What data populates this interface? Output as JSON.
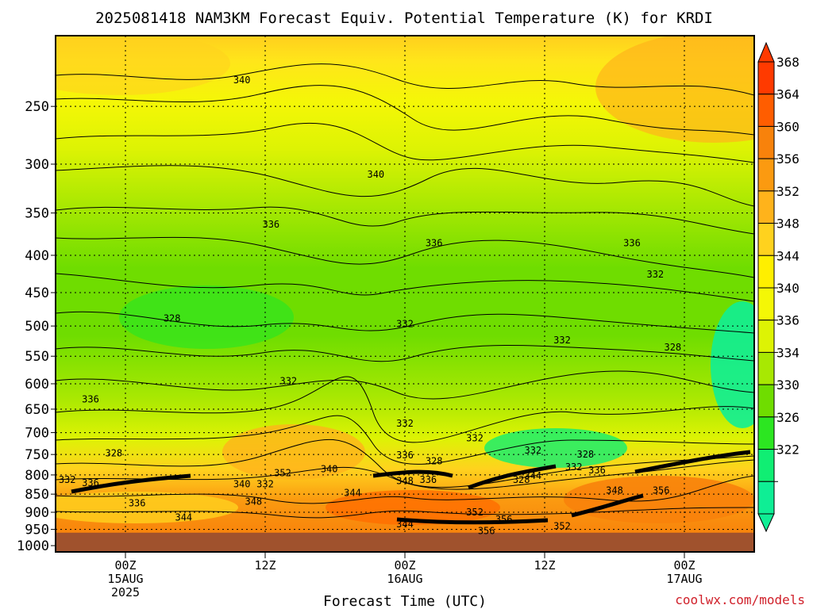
{
  "chart_data": {
    "type": "heatmap",
    "title": "2025081418 NAM3KM Forecast Equiv. Potential Temperature (K) for KRDI",
    "xlabel": "Forecast Time (UTC)",
    "ylabel": "",
    "credit": "coolwx.com/models",
    "x_ticks": [
      {
        "hour": 6,
        "line1": "00Z",
        "line2": "15AUG",
        "line3": "2025"
      },
      {
        "hour": 18,
        "line1": "12Z",
        "line2": "",
        "line3": ""
      },
      {
        "hour": 30,
        "line1": "00Z",
        "line2": "16AUG",
        "line3": ""
      },
      {
        "hour": 42,
        "line1": "12Z",
        "line2": "",
        "line3": ""
      },
      {
        "hour": 54,
        "line1": "00Z",
        "line2": "17AUG",
        "line3": ""
      }
    ],
    "x_range_hours": [
      0,
      60
    ],
    "y_ticks": [
      "250",
      "300",
      "350",
      "400",
      "450",
      "500",
      "550",
      "600",
      "650",
      "700",
      "750",
      "800",
      "850",
      "900",
      "950",
      "1000"
    ],
    "y_range_hPa": [
      200,
      1020
    ],
    "surface_pressure_hPa": 960,
    "colorbar": {
      "labels": [
        "368",
        "364",
        "360",
        "356",
        "352",
        "348",
        "344",
        "340",
        "336",
        "334",
        "330",
        "326",
        "322"
      ],
      "colors": [
        "#ff3a00",
        "#ff5d00",
        "#f8820b",
        "#fb9a10",
        "#ffb31b",
        "#ffd21e",
        "#ffef00",
        "#f4f706",
        "#ddf304",
        "#a8e802",
        "#6fdd00",
        "#2ce621",
        "#10ee73",
        "#0fee95"
      ]
    },
    "contour_labels": [
      {
        "text": "340",
        "hour": 16,
        "p": 230
      },
      {
        "text": "340",
        "hour": 27.5,
        "p": 310
      },
      {
        "text": "336",
        "hour": 18.5,
        "p": 363
      },
      {
        "text": "336",
        "hour": 32.5,
        "p": 385
      },
      {
        "text": "336",
        "hour": 49.5,
        "p": 385
      },
      {
        "text": "332",
        "hour": 51.5,
        "p": 425
      },
      {
        "text": "328",
        "hour": 10,
        "p": 488
      },
      {
        "text": "332",
        "hour": 30,
        "p": 497
      },
      {
        "text": "332",
        "hour": 43.5,
        "p": 523
      },
      {
        "text": "328",
        "hour": 53,
        "p": 535
      },
      {
        "text": "332",
        "hour": 20,
        "p": 595
      },
      {
        "text": "336",
        "hour": 3,
        "p": 630
      },
      {
        "text": "332",
        "hour": 30,
        "p": 680
      },
      {
        "text": "332",
        "hour": 36,
        "p": 712
      },
      {
        "text": "336",
        "hour": 30,
        "p": 752
      },
      {
        "text": "328",
        "hour": 32.5,
        "p": 766
      },
      {
        "text": "332",
        "hour": 41,
        "p": 740
      },
      {
        "text": "328",
        "hour": 45.5,
        "p": 750
      },
      {
        "text": "332",
        "hour": 44.5,
        "p": 780
      },
      {
        "text": "336",
        "hour": 46.5,
        "p": 788
      },
      {
        "text": "328",
        "hour": 5,
        "p": 747
      },
      {
        "text": "352",
        "hour": 19.5,
        "p": 795
      },
      {
        "text": "340",
        "hour": 23.5,
        "p": 785
      },
      {
        "text": "332",
        "hour": 1,
        "p": 812
      },
      {
        "text": "336",
        "hour": 3,
        "p": 820
      },
      {
        "text": "340",
        "hour": 16,
        "p": 823
      },
      {
        "text": "332",
        "hour": 18,
        "p": 823
      },
      {
        "text": "348",
        "hour": 30,
        "p": 815
      },
      {
        "text": "336",
        "hour": 32,
        "p": 812
      },
      {
        "text": "328",
        "hour": 40,
        "p": 812
      },
      {
        "text": "344",
        "hour": 41,
        "p": 802
      },
      {
        "text": "344",
        "hour": 25.5,
        "p": 847
      },
      {
        "text": "348",
        "hour": 48,
        "p": 840
      },
      {
        "text": "356",
        "hour": 52,
        "p": 840
      },
      {
        "text": "336",
        "hour": 7,
        "p": 875
      },
      {
        "text": "348",
        "hour": 17,
        "p": 870
      },
      {
        "text": "352",
        "hour": 36,
        "p": 900
      },
      {
        "text": "356",
        "hour": 38.5,
        "p": 920
      },
      {
        "text": "344",
        "hour": 11,
        "p": 915
      },
      {
        "text": "344",
        "hour": 30,
        "p": 935
      },
      {
        "text": "356",
        "hour": 37,
        "p": 955
      },
      {
        "text": "352",
        "hour": 43.5,
        "p": 940
      }
    ]
  }
}
